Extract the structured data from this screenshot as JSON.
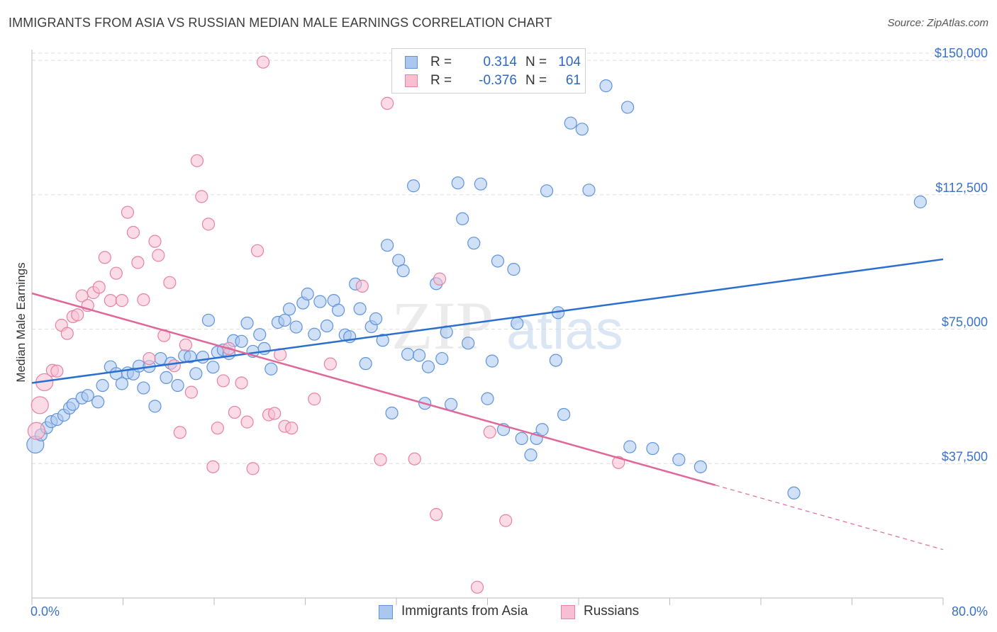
{
  "title": "IMMIGRANTS FROM ASIA VS RUSSIAN MEDIAN MALE EARNINGS CORRELATION CHART",
  "source": "Source: ZipAtlas.com",
  "watermark": {
    "zip": "ZIP",
    "atlas": "atlas"
  },
  "legend": {
    "r_label": "R =",
    "n_label": "N =",
    "rows": [
      {
        "r": "0.314",
        "n": "104",
        "fill": "#a9c7ef",
        "stroke": "#5f93dd"
      },
      {
        "r": "-0.376",
        "n": "61",
        "fill": "#f7bfd1",
        "stroke": "#e9819f"
      }
    ]
  },
  "bottom_legend": [
    {
      "label": "Immigrants from Asia",
      "fill": "#a9c7ef",
      "stroke": "#5f93dd"
    },
    {
      "label": "Russians",
      "fill": "#f7bfd1",
      "stroke": "#e9819f"
    }
  ],
  "chart_data": {
    "type": "scatter",
    "title": "IMMIGRANTS FROM ASIA VS RUSSIAN MEDIAN MALE EARNINGS CORRELATION CHART",
    "xlabel": "",
    "ylabel": "Median Male Earnings",
    "xlim": [
      0,
      80
    ],
    "ylim": [
      0,
      153000
    ],
    "x_tick_labels": [
      "0.0%",
      "80.0%"
    ],
    "y_ticks": [
      37500,
      75000,
      112500,
      150000
    ],
    "y_tick_labels": [
      "$37,500",
      "$75,000",
      "$112,500",
      "$150,000"
    ],
    "grid": true,
    "legend_position": "top-center",
    "colors": {
      "asia": "#5f93dd",
      "asia_fill": "#a9c7ef",
      "asia_line": "#2a6fd0",
      "russians": "#e9819f",
      "russians_fill": "#f7bfd1",
      "russians_line": "#e0679a"
    },
    "series": [
      {
        "name": "Immigrants from Asia",
        "color": "#5f93dd",
        "trend": {
          "x": [
            0,
            80
          ],
          "y": [
            60000,
            94500
          ]
        },
        "points": [
          [
            0.3,
            42800
          ],
          [
            0.8,
            45500
          ],
          [
            1.3,
            47500
          ],
          [
            1.7,
            49200
          ],
          [
            2.2,
            49800
          ],
          [
            2.8,
            51000
          ],
          [
            3.3,
            53000
          ],
          [
            3.6,
            54000
          ],
          [
            4.4,
            55800
          ],
          [
            4.9,
            56500
          ],
          [
            5.8,
            54700
          ],
          [
            6.2,
            59300
          ],
          [
            6.9,
            64500
          ],
          [
            7.4,
            62600
          ],
          [
            7.9,
            59800
          ],
          [
            8.4,
            62800
          ],
          [
            8.9,
            62500
          ],
          [
            9.4,
            64700
          ],
          [
            9.8,
            58600
          ],
          [
            10.3,
            64600
          ],
          [
            10.8,
            53500
          ],
          [
            11.3,
            66800
          ],
          [
            11.8,
            61500
          ],
          [
            12.2,
            65500
          ],
          [
            12.8,
            59300
          ],
          [
            13.4,
            67600
          ],
          [
            13.9,
            67300
          ],
          [
            14.4,
            62600
          ],
          [
            15.0,
            67200
          ],
          [
            15.5,
            77500
          ],
          [
            15.9,
            64400
          ],
          [
            16.3,
            68600
          ],
          [
            16.8,
            69200
          ],
          [
            17.3,
            68200
          ],
          [
            17.7,
            71800
          ],
          [
            18.4,
            71600
          ],
          [
            18.9,
            76700
          ],
          [
            19.4,
            68800
          ],
          [
            20.0,
            73500
          ],
          [
            20.4,
            69600
          ],
          [
            21.0,
            63900
          ],
          [
            21.6,
            76900
          ],
          [
            22.2,
            77500
          ],
          [
            22.6,
            80600
          ],
          [
            23.2,
            75600
          ],
          [
            23.8,
            82300
          ],
          [
            24.2,
            84800
          ],
          [
            24.8,
            73600
          ],
          [
            25.3,
            82700
          ],
          [
            25.9,
            75900
          ],
          [
            26.5,
            83000
          ],
          [
            26.9,
            80300
          ],
          [
            27.5,
            73400
          ],
          [
            27.9,
            72900
          ],
          [
            28.4,
            87600
          ],
          [
            28.8,
            80700
          ],
          [
            29.3,
            65400
          ],
          [
            29.8,
            75700
          ],
          [
            30.2,
            77900
          ],
          [
            30.8,
            71900
          ],
          [
            31.2,
            98400
          ],
          [
            31.6,
            51600
          ],
          [
            32.2,
            94200
          ],
          [
            32.6,
            91300
          ],
          [
            33.0,
            68000
          ],
          [
            33.5,
            115000
          ],
          [
            34.0,
            67700
          ],
          [
            34.5,
            54300
          ],
          [
            34.8,
            64500
          ],
          [
            35.5,
            87700
          ],
          [
            36.0,
            66800
          ],
          [
            36.4,
            74200
          ],
          [
            36.8,
            54000
          ],
          [
            37.4,
            115800
          ],
          [
            37.8,
            105800
          ],
          [
            38.3,
            71100
          ],
          [
            38.8,
            99000
          ],
          [
            39.4,
            115500
          ],
          [
            40.0,
            55600
          ],
          [
            40.4,
            66100
          ],
          [
            40.9,
            94000
          ],
          [
            41.4,
            47000
          ],
          [
            42.3,
            91700
          ],
          [
            42.6,
            76600
          ],
          [
            43.0,
            44500
          ],
          [
            43.8,
            39900
          ],
          [
            44.3,
            44500
          ],
          [
            44.8,
            47000
          ],
          [
            45.2,
            113600
          ],
          [
            46.0,
            66300
          ],
          [
            46.2,
            79600
          ],
          [
            46.7,
            51200
          ],
          [
            47.3,
            132500
          ],
          [
            48.3,
            130800
          ],
          [
            48.9,
            113800
          ],
          [
            50.4,
            142900
          ],
          [
            52.3,
            136900
          ],
          [
            52.5,
            42200
          ],
          [
            54.5,
            41700
          ],
          [
            56.8,
            38600
          ],
          [
            58.7,
            36600
          ],
          [
            66.9,
            29300
          ],
          [
            78.0,
            110500
          ]
        ]
      },
      {
        "name": "Russians",
        "color": "#e9819f",
        "trend": {
          "x": [
            0,
            60
          ],
          "y": [
            85000,
            31500
          ]
        },
        "trend_dashed": {
          "x": [
            60,
            80
          ],
          "y": [
            31500,
            13500
          ]
        },
        "points": [
          [
            0.4,
            46600
          ],
          [
            0.7,
            53800
          ],
          [
            1.1,
            60200
          ],
          [
            1.8,
            63500
          ],
          [
            2.2,
            63300
          ],
          [
            2.6,
            76100
          ],
          [
            3.1,
            73800
          ],
          [
            3.6,
            78500
          ],
          [
            4.0,
            79000
          ],
          [
            4.4,
            84300
          ],
          [
            4.9,
            81600
          ],
          [
            5.4,
            85200
          ],
          [
            5.9,
            86700
          ],
          [
            6.4,
            95000
          ],
          [
            6.9,
            83000
          ],
          [
            7.4,
            90600
          ],
          [
            7.9,
            83000
          ],
          [
            8.4,
            107600
          ],
          [
            8.9,
            102000
          ],
          [
            9.3,
            93600
          ],
          [
            9.8,
            83200
          ],
          [
            10.3,
            66800
          ],
          [
            10.8,
            99500
          ],
          [
            11.1,
            95600
          ],
          [
            11.6,
            73200
          ],
          [
            12.1,
            88000
          ],
          [
            12.5,
            64800
          ],
          [
            13.0,
            46200
          ],
          [
            13.5,
            70600
          ],
          [
            14.0,
            57400
          ],
          [
            14.5,
            122000
          ],
          [
            14.9,
            112000
          ],
          [
            15.5,
            104300
          ],
          [
            15.9,
            36600
          ],
          [
            16.3,
            47400
          ],
          [
            16.8,
            60600
          ],
          [
            17.3,
            69600
          ],
          [
            17.8,
            51800
          ],
          [
            18.4,
            60000
          ],
          [
            18.9,
            49100
          ],
          [
            19.4,
            36100
          ],
          [
            19.8,
            96900
          ],
          [
            20.3,
            149500
          ],
          [
            20.8,
            51100
          ],
          [
            21.3,
            51500
          ],
          [
            21.8,
            67900
          ],
          [
            22.2,
            47900
          ],
          [
            22.8,
            47400
          ],
          [
            24.8,
            55500
          ],
          [
            26.2,
            65300
          ],
          [
            29.0,
            87000
          ],
          [
            30.6,
            38600
          ],
          [
            31.2,
            138000
          ],
          [
            33.6,
            38800
          ],
          [
            35.5,
            23300
          ],
          [
            35.8,
            89000
          ],
          [
            39.1,
            3000
          ],
          [
            40.2,
            46300
          ],
          [
            41.6,
            21600
          ],
          [
            51.5,
            37800
          ]
        ]
      }
    ]
  }
}
